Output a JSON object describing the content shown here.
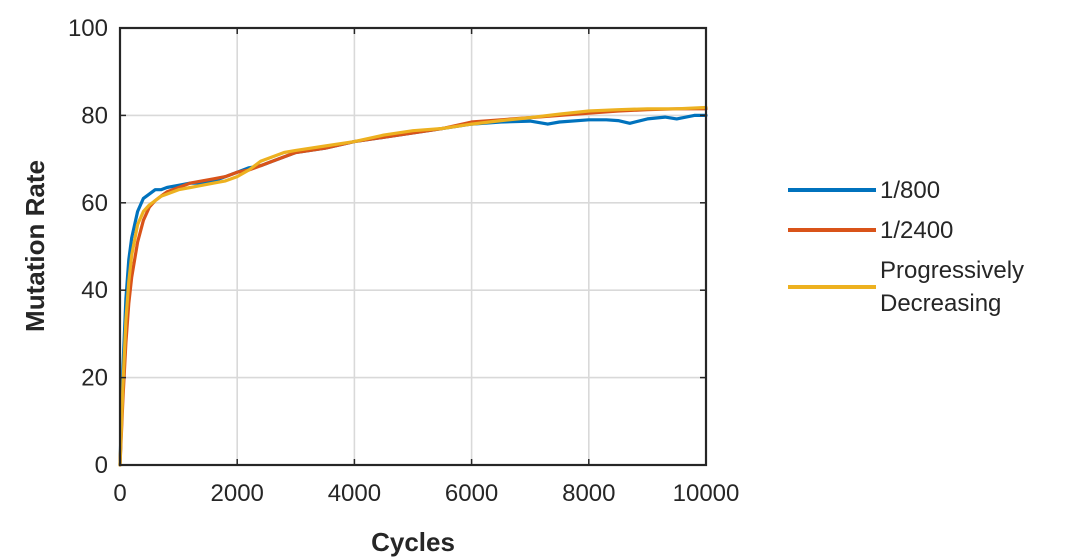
{
  "chart_data": {
    "type": "line",
    "title": "",
    "xlabel": "Cycles",
    "ylabel": "Mutation Rate",
    "xlim": [
      0,
      10000
    ],
    "ylim": [
      0,
      100
    ],
    "xticks": [
      0,
      2000,
      4000,
      6000,
      8000,
      10000
    ],
    "yticks": [
      0,
      20,
      40,
      60,
      80,
      100
    ],
    "xtick_labels": [
      "0",
      "2000",
      "4000",
      "6000",
      "8000",
      "10000"
    ],
    "ytick_labels": [
      "0",
      "20",
      "40",
      "60",
      "80",
      "100"
    ],
    "grid": true,
    "legend_position": "right-outside",
    "series": [
      {
        "name": "1/800",
        "color": "#0072BD",
        "x": [
          0,
          50,
          100,
          150,
          200,
          300,
          400,
          500,
          600,
          700,
          800,
          1000,
          1200,
          1400,
          1600,
          1800,
          2000,
          2200,
          2400,
          2600,
          2800,
          3000,
          3500,
          4000,
          4500,
          5000,
          5500,
          6000,
          6500,
          7000,
          7300,
          7500,
          8000,
          8300,
          8500,
          8700,
          9000,
          9300,
          9500,
          9800,
          10000
        ],
        "values": [
          0,
          22,
          38,
          47,
          52,
          58,
          61,
          62,
          63,
          63,
          63.5,
          64,
          64.5,
          64.5,
          65,
          66,
          67,
          68,
          68.5,
          69.5,
          70.5,
          71.5,
          72.5,
          74,
          75,
          76,
          77,
          78,
          78.5,
          78.7,
          78,
          78.5,
          79,
          79,
          78.8,
          78.2,
          79.2,
          79.6,
          79.2,
          80,
          80
        ]
      },
      {
        "name": "1/2400",
        "color": "#D95319",
        "x": [
          0,
          50,
          100,
          150,
          200,
          300,
          400,
          500,
          600,
          700,
          800,
          1000,
          1200,
          1400,
          1600,
          1800,
          2000,
          2200,
          2400,
          2600,
          2800,
          3000,
          3500,
          4000,
          4500,
          5000,
          5500,
          6000,
          6500,
          7000,
          7500,
          8000,
          8500,
          9000,
          9500,
          10000
        ],
        "values": [
          0,
          15,
          28,
          37,
          43,
          51,
          56,
          59,
          60.5,
          61.5,
          62.5,
          63.5,
          64.5,
          65,
          65.5,
          66,
          67,
          67.5,
          68.5,
          69.5,
          70.5,
          71.5,
          72.5,
          74,
          75,
          76,
          77,
          78.5,
          79,
          79.5,
          80,
          80.5,
          81,
          81.3,
          81.5,
          81.5
        ]
      },
      {
        "name": "Progressively Decreasing",
        "legend_lines": [
          "Progressively",
          "Decreasing"
        ],
        "color": "#EDB120",
        "x": [
          0,
          50,
          100,
          150,
          200,
          300,
          400,
          500,
          600,
          700,
          800,
          1000,
          1200,
          1400,
          1600,
          1800,
          2000,
          2200,
          2400,
          2600,
          2800,
          3000,
          3500,
          4000,
          4500,
          5000,
          5500,
          6000,
          6500,
          7000,
          7500,
          8000,
          8500,
          9000,
          9500,
          10000
        ],
        "values": [
          0,
          18,
          33,
          42,
          48,
          55,
          58,
          59.5,
          60.5,
          61.5,
          62,
          63,
          63.5,
          64,
          64.5,
          65,
          66,
          67.5,
          69.5,
          70.5,
          71.5,
          72,
          73,
          74,
          75.5,
          76.5,
          77,
          78,
          78.8,
          79.5,
          80.3,
          81,
          81.3,
          81.5,
          81.5,
          81.8
        ]
      }
    ]
  }
}
